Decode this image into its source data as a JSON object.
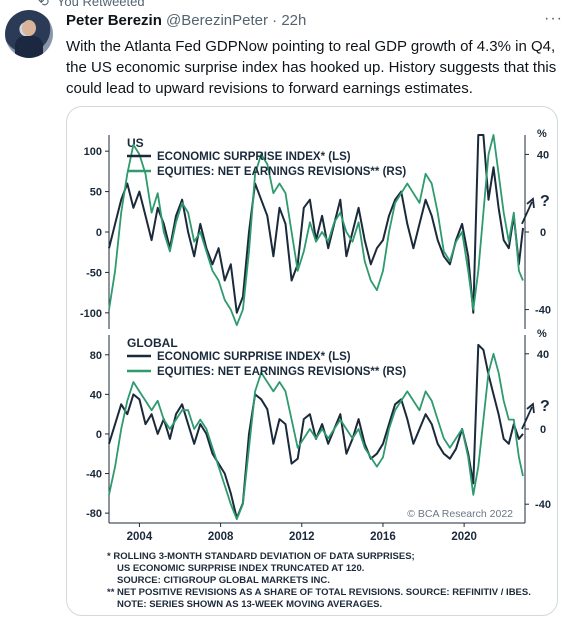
{
  "retweet": {
    "label": "You Retweeted"
  },
  "tweet": {
    "author_name": "Peter Berezin",
    "handle": "@BerezinPeter",
    "separator": "·",
    "time": "22h",
    "more_label": "···",
    "text": "With the Atlanta Fed GDPNow pointing to real GDP growth of 4.3% in Q4, the US economic surprise index has hooked up. History suggests that this could lead to upward revisions to forward earnings estimates."
  },
  "colors": {
    "navy": "#1b2a3b",
    "green": "#2e9a6e",
    "muted": "#536471"
  },
  "chart_data": [
    {
      "type": "line",
      "panel_title": "US",
      "right_unit": "%",
      "x_ticks": [
        "2004",
        "2008",
        "2012",
        "2016",
        "2020"
      ],
      "y_left_ticks": [
        "100",
        "50",
        "0",
        "-50",
        "-100"
      ],
      "y_right_ticks": [
        "40",
        "0",
        "-40"
      ],
      "ylim_left": [
        -120,
        120
      ],
      "ylim_right": [
        -50,
        50
      ],
      "xlim": [
        2002.5,
        2023
      ],
      "question_mark": "?",
      "series": [
        {
          "name": "ECONOMIC SURPRISE INDEX* (LS)",
          "color": "#1b2a3b",
          "x": [
            2002.5,
            2002.8,
            2003.1,
            2003.4,
            2003.7,
            2004.0,
            2004.3,
            2004.6,
            2004.9,
            2005.2,
            2005.5,
            2005.8,
            2006.1,
            2006.4,
            2006.7,
            2007.0,
            2007.3,
            2007.6,
            2007.9,
            2008.2,
            2008.5,
            2008.8,
            2009.1,
            2009.4,
            2009.7,
            2010.0,
            2010.3,
            2010.6,
            2010.9,
            2011.2,
            2011.5,
            2011.8,
            2012.1,
            2012.4,
            2012.7,
            2013.0,
            2013.3,
            2013.6,
            2013.9,
            2014.2,
            2014.5,
            2014.8,
            2015.1,
            2015.4,
            2015.7,
            2016.0,
            2016.3,
            2016.6,
            2016.9,
            2017.2,
            2017.5,
            2017.8,
            2018.1,
            2018.4,
            2018.7,
            2019.0,
            2019.3,
            2019.6,
            2019.9,
            2020.2,
            2020.45,
            2020.7,
            2020.95,
            2021.2,
            2021.45,
            2021.7,
            2021.95,
            2022.2,
            2022.45,
            2022.7,
            2022.9
          ],
          "values": [
            -20,
            10,
            40,
            60,
            30,
            50,
            20,
            -10,
            30,
            10,
            -20,
            20,
            40,
            0,
            -30,
            10,
            -20,
            -40,
            -20,
            -60,
            -40,
            -100,
            -80,
            0,
            60,
            40,
            20,
            -30,
            30,
            10,
            -60,
            -40,
            30,
            40,
            -10,
            20,
            -20,
            10,
            40,
            -30,
            0,
            30,
            -10,
            -40,
            -20,
            -10,
            20,
            40,
            50,
            10,
            -20,
            10,
            40,
            20,
            -10,
            -30,
            -40,
            -10,
            10,
            -30,
            -100,
            120,
            120,
            40,
            80,
            30,
            -10,
            -20,
            20,
            -40,
            5
          ]
        },
        {
          "name": "EQUITIES: NET EARNINGS REVISIONS** (RS)",
          "color": "#2e9a6e",
          "x": [
            2002.5,
            2002.8,
            2003.1,
            2003.4,
            2003.7,
            2004.0,
            2004.3,
            2004.6,
            2004.9,
            2005.2,
            2005.5,
            2005.8,
            2006.1,
            2006.4,
            2006.7,
            2007.0,
            2007.3,
            2007.6,
            2007.9,
            2008.2,
            2008.5,
            2008.8,
            2009.1,
            2009.4,
            2009.7,
            2010.0,
            2010.3,
            2010.6,
            2010.9,
            2011.2,
            2011.5,
            2011.8,
            2012.1,
            2012.4,
            2012.7,
            2013.0,
            2013.3,
            2013.6,
            2013.9,
            2014.2,
            2014.5,
            2014.8,
            2015.1,
            2015.4,
            2015.7,
            2016.0,
            2016.3,
            2016.6,
            2016.9,
            2017.2,
            2017.5,
            2017.8,
            2018.1,
            2018.4,
            2018.7,
            2019.0,
            2019.3,
            2019.6,
            2019.9,
            2020.2,
            2020.45,
            2020.7,
            2020.95,
            2021.2,
            2021.45,
            2021.7,
            2021.95,
            2022.2,
            2022.45,
            2022.7,
            2022.9
          ],
          "values": [
            -40,
            -20,
            10,
            30,
            45,
            40,
            30,
            10,
            20,
            0,
            -10,
            5,
            15,
            10,
            -5,
            0,
            -10,
            -20,
            -25,
            -35,
            -40,
            -48,
            -40,
            -10,
            30,
            40,
            35,
            20,
            25,
            20,
            0,
            -20,
            -10,
            5,
            -5,
            0,
            -5,
            5,
            10,
            0,
            -5,
            5,
            -15,
            -25,
            -30,
            -20,
            0,
            15,
            20,
            25,
            20,
            15,
            30,
            25,
            10,
            -10,
            -15,
            -5,
            0,
            -20,
            -40,
            -20,
            10,
            40,
            50,
            30,
            10,
            -5,
            10,
            -20,
            -25
          ]
        }
      ]
    },
    {
      "type": "line",
      "panel_title": "GLOBAL",
      "right_unit": "%",
      "x_ticks": [
        "2004",
        "2008",
        "2012",
        "2016",
        "2020"
      ],
      "y_left_ticks": [
        "80",
        "40",
        "0",
        "-40",
        "-80"
      ],
      "y_right_ticks": [
        "40",
        "0",
        "-40"
      ],
      "ylim_left": [
        -90,
        100
      ],
      "ylim_right": [
        -50,
        50
      ],
      "xlim": [
        2002.5,
        2023
      ],
      "question_mark": "?",
      "watermark": "© BCA Research 2022",
      "series": [
        {
          "name": "ECONOMIC SURPRISE INDEX* (LS)",
          "color": "#1b2a3b",
          "x": [
            2002.5,
            2002.8,
            2003.1,
            2003.4,
            2003.7,
            2004.0,
            2004.3,
            2004.6,
            2004.9,
            2005.2,
            2005.5,
            2005.8,
            2006.1,
            2006.4,
            2006.7,
            2007.0,
            2007.3,
            2007.6,
            2007.9,
            2008.2,
            2008.5,
            2008.8,
            2009.1,
            2009.4,
            2009.7,
            2010.0,
            2010.3,
            2010.6,
            2010.9,
            2011.2,
            2011.5,
            2011.8,
            2012.1,
            2012.4,
            2012.7,
            2013.0,
            2013.3,
            2013.6,
            2013.9,
            2014.2,
            2014.5,
            2014.8,
            2015.1,
            2015.4,
            2015.7,
            2016.0,
            2016.3,
            2016.6,
            2016.9,
            2017.2,
            2017.5,
            2017.8,
            2018.1,
            2018.4,
            2018.7,
            2019.0,
            2019.3,
            2019.6,
            2019.9,
            2020.2,
            2020.45,
            2020.7,
            2020.95,
            2021.2,
            2021.45,
            2021.7,
            2021.95,
            2022.2,
            2022.45,
            2022.7,
            2022.9
          ],
          "values": [
            -10,
            10,
            30,
            20,
            40,
            35,
            10,
            20,
            0,
            15,
            -5,
            20,
            30,
            10,
            -10,
            10,
            0,
            -20,
            -30,
            -40,
            -60,
            -85,
            -70,
            0,
            40,
            35,
            25,
            -10,
            15,
            10,
            -30,
            -25,
            15,
            20,
            -5,
            10,
            -10,
            5,
            20,
            -20,
            -5,
            15,
            -10,
            -25,
            -20,
            -10,
            10,
            30,
            35,
            15,
            -10,
            5,
            20,
            10,
            -10,
            -20,
            -25,
            -15,
            5,
            -20,
            -50,
            90,
            85,
            60,
            40,
            20,
            -5,
            -10,
            10,
            -5,
            0
          ]
        },
        {
          "name": "EQUITIES: NET EARNINGS REVISIONS** (RS)",
          "color": "#2e9a6e",
          "x": [
            2002.5,
            2002.8,
            2003.1,
            2003.4,
            2003.7,
            2004.0,
            2004.3,
            2004.6,
            2004.9,
            2005.2,
            2005.5,
            2005.8,
            2006.1,
            2006.4,
            2006.7,
            2007.0,
            2007.3,
            2007.6,
            2007.9,
            2008.2,
            2008.5,
            2008.8,
            2009.1,
            2009.4,
            2009.7,
            2010.0,
            2010.3,
            2010.6,
            2010.9,
            2011.2,
            2011.5,
            2011.8,
            2012.1,
            2012.4,
            2012.7,
            2013.0,
            2013.3,
            2013.6,
            2013.9,
            2014.2,
            2014.5,
            2014.8,
            2015.1,
            2015.4,
            2015.7,
            2016.0,
            2016.3,
            2016.6,
            2016.9,
            2017.2,
            2017.5,
            2017.8,
            2018.1,
            2018.4,
            2018.7,
            2019.0,
            2019.3,
            2019.6,
            2019.9,
            2020.2,
            2020.45,
            2020.7,
            2020.95,
            2021.2,
            2021.45,
            2021.7,
            2021.95,
            2022.2,
            2022.45,
            2022.7,
            2022.9
          ],
          "values": [
            -35,
            -20,
            0,
            15,
            25,
            20,
            15,
            10,
            15,
            5,
            0,
            5,
            10,
            10,
            0,
            5,
            0,
            -10,
            -20,
            -30,
            -40,
            -48,
            -40,
            -10,
            20,
            30,
            25,
            20,
            25,
            20,
            5,
            -10,
            -5,
            0,
            -5,
            0,
            -5,
            0,
            5,
            0,
            -5,
            0,
            -10,
            -15,
            -20,
            -15,
            0,
            10,
            15,
            20,
            15,
            10,
            20,
            15,
            5,
            -5,
            -10,
            -5,
            0,
            -15,
            -35,
            -20,
            5,
            30,
            40,
            30,
            15,
            5,
            5,
            -15,
            -25
          ]
        }
      ]
    }
  ],
  "footnotes": [
    "* ROLLING 3-MONTH STANDARD DEVIATION OF DATA SURPRISES;",
    "US ECONOMIC SURPRISE INDEX TRUNCATED AT 120.",
    "SOURCE: CITIGROUP GLOBAL MARKETS INC.",
    "** NET POSITIVE REVISIONS AS A SHARE OF TOTAL REVISIONS. SOURCE: REFINITIV / IBES.",
    "NOTE: SERIES SHOWN AS 13-WEEK MOVING AVERAGES."
  ]
}
